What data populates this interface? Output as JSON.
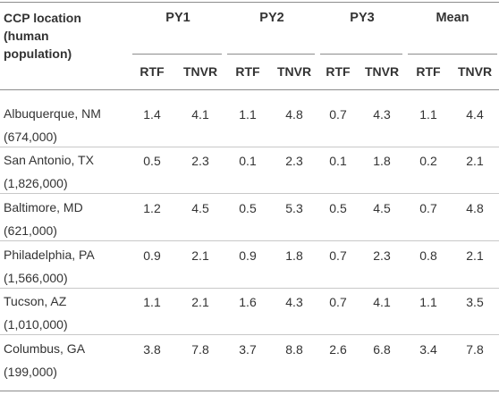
{
  "header": {
    "location_line1": "CCP location",
    "location_line2": "(human",
    "location_line3": "population)",
    "groups": [
      "PY1",
      "PY2",
      "PY3",
      "Mean"
    ],
    "subcols": [
      "RTF",
      "TNVR",
      "RTF",
      "TNVR",
      "RTF",
      "TNVR",
      "RTF",
      "TNVR"
    ]
  },
  "rows": [
    {
      "city": "Albuquerque, NM",
      "pop": "(674,000)",
      "vals": [
        "1.4",
        "4.1",
        "1.1",
        "4.8",
        "0.7",
        "4.3",
        "1.1",
        "4.4"
      ]
    },
    {
      "city": "San Antonio, TX",
      "pop": "(1,826,000)",
      "vals": [
        "0.5",
        "2.3",
        "0.1",
        "2.3",
        "0.1",
        "1.8",
        "0.2",
        "2.1"
      ]
    },
    {
      "city": "Baltimore, MD",
      "pop": "(621,000)",
      "vals": [
        "1.2",
        "4.5",
        "0.5",
        "5.3",
        "0.5",
        "4.5",
        "0.7",
        "4.8"
      ]
    },
    {
      "city": "Philadelphia, PA",
      "pop": "(1,566,000)",
      "vals": [
        "0.9",
        "2.1",
        "0.9",
        "1.8",
        "0.7",
        "2.3",
        "0.8",
        "2.1"
      ]
    },
    {
      "city": "Tucson, AZ",
      "pop": "(1,010,000)",
      "vals": [
        "1.1",
        "2.1",
        "1.6",
        "4.3",
        "0.7",
        "4.1",
        "1.1",
        "3.5"
      ]
    },
    {
      "city": "Columbus, GA",
      "pop": "(199,000)",
      "vals": [
        "3.8",
        "7.8",
        "3.7",
        "8.8",
        "2.6",
        "6.8",
        "3.4",
        "7.8"
      ]
    }
  ]
}
